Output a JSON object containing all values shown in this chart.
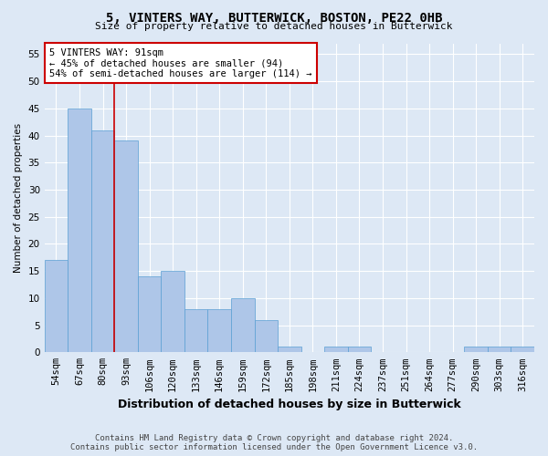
{
  "title1": "5, VINTERS WAY, BUTTERWICK, BOSTON, PE22 0HB",
  "title2": "Size of property relative to detached houses in Butterwick",
  "xlabel": "Distribution of detached houses by size in Butterwick",
  "ylabel": "Number of detached properties",
  "categories": [
    "54sqm",
    "67sqm",
    "80sqm",
    "93sqm",
    "106sqm",
    "120sqm",
    "133sqm",
    "146sqm",
    "159sqm",
    "172sqm",
    "185sqm",
    "198sqm",
    "211sqm",
    "224sqm",
    "237sqm",
    "251sqm",
    "264sqm",
    "277sqm",
    "290sqm",
    "303sqm",
    "316sqm"
  ],
  "values": [
    17,
    45,
    41,
    39,
    14,
    15,
    8,
    8,
    10,
    6,
    1,
    0,
    1,
    1,
    0,
    0,
    0,
    0,
    1,
    1,
    1
  ],
  "bar_color": "#aec6e8",
  "bar_edge_color": "#5a9fd4",
  "vline_x_idx": 2.5,
  "vline_color": "#cc0000",
  "annotation_text": "5 VINTERS WAY: 91sqm\n← 45% of detached houses are smaller (94)\n54% of semi-detached houses are larger (114) →",
  "annotation_box_color": "white",
  "annotation_box_edge_color": "#cc0000",
  "ylim": [
    0,
    57
  ],
  "yticks": [
    0,
    5,
    10,
    15,
    20,
    25,
    30,
    35,
    40,
    45,
    50,
    55
  ],
  "footer1": "Contains HM Land Registry data © Crown copyright and database right 2024.",
  "footer2": "Contains public sector information licensed under the Open Government Licence v3.0.",
  "bg_color": "#dde8f5",
  "plot_bg_color": "#dde8f5",
  "title_fontsize": 10,
  "subtitle_fontsize": 8,
  "xlabel_fontsize": 9,
  "ylabel_fontsize": 7.5,
  "tick_fontsize": 7.5,
  "footer_fontsize": 6.5
}
